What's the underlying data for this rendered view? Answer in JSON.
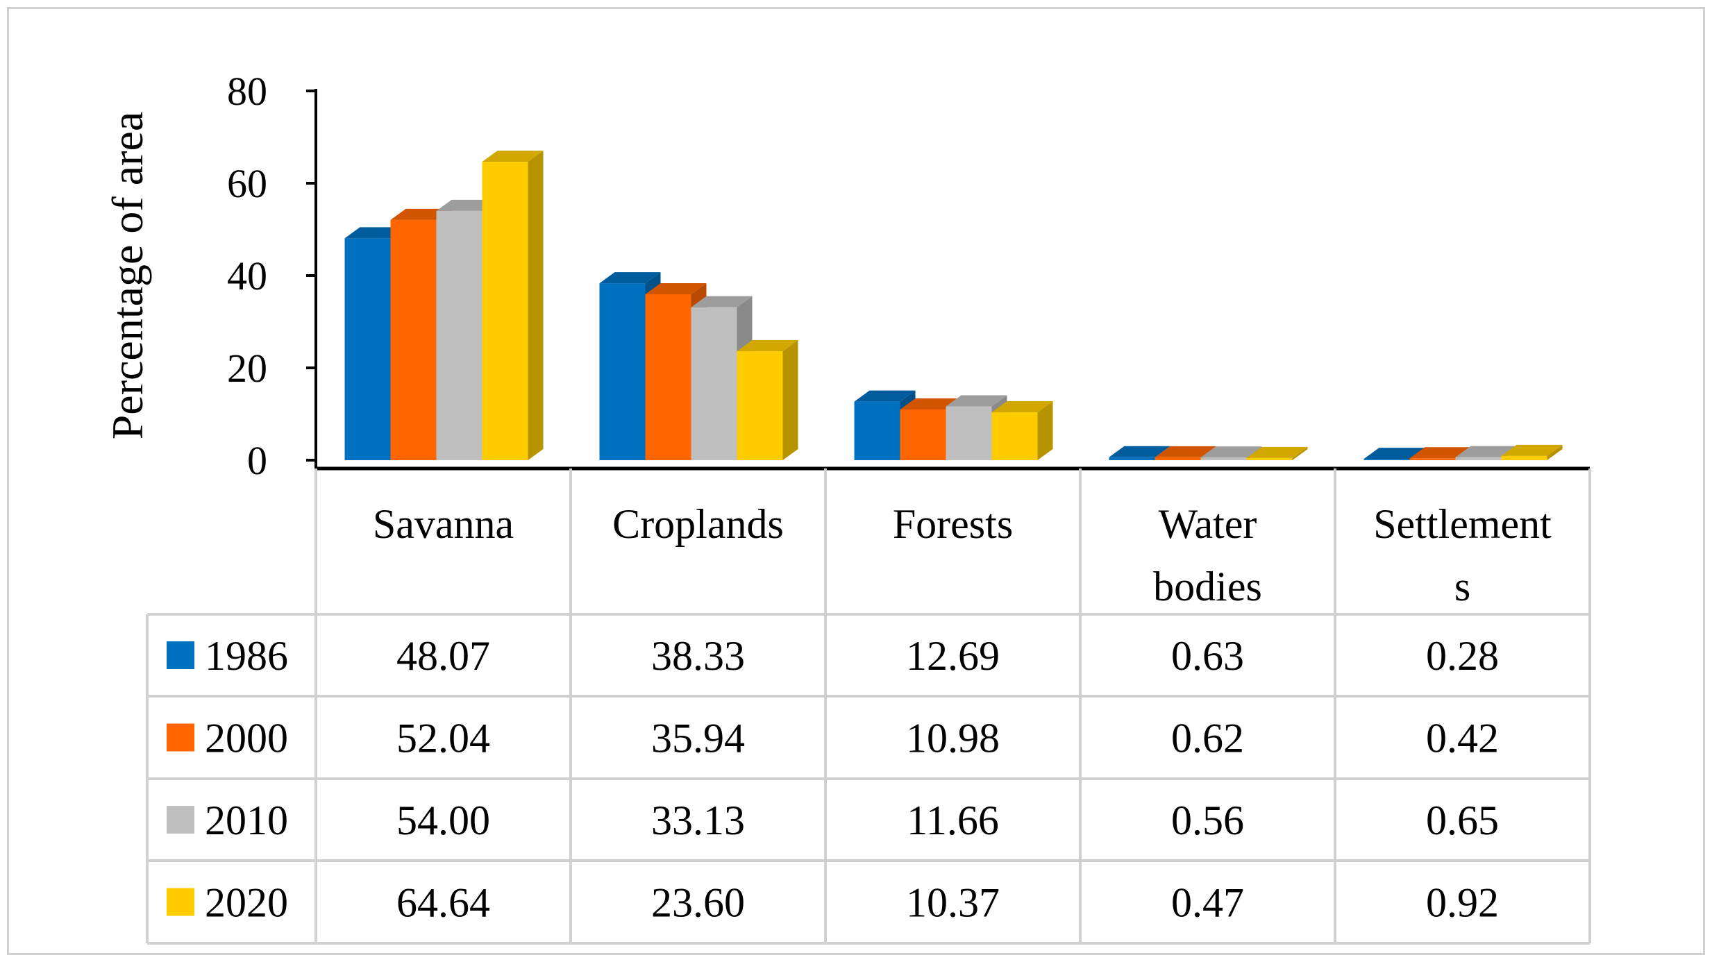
{
  "chart_data": {
    "type": "bar",
    "ylabel": "Percentage of area",
    "ylim": [
      0,
      80
    ],
    "yticks": [
      "0",
      "20",
      "40",
      "60",
      "80"
    ],
    "categories": [
      [
        "Savanna"
      ],
      [
        "Croplands"
      ],
      [
        "Forests"
      ],
      [
        "Water",
        "bodies"
      ],
      [
        "Settlement",
        "s"
      ]
    ],
    "series": [
      {
        "name": "1986",
        "color": "#0070C0",
        "values": [
          48.07,
          38.33,
          12.69,
          0.63,
          0.28
        ],
        "labels": [
          "48.07",
          "38.33",
          "12.69",
          "0.63",
          "0.28"
        ]
      },
      {
        "name": "2000",
        "color": "#FF6600",
        "values": [
          52.04,
          35.94,
          10.98,
          0.62,
          0.42
        ],
        "labels": [
          "52.04",
          "35.94",
          "10.98",
          "0.62",
          "0.42"
        ]
      },
      {
        "name": "2010",
        "color": "#BFBFBF",
        "values": [
          54.0,
          33.13,
          11.66,
          0.56,
          0.65
        ],
        "labels": [
          "54.00",
          "33.13",
          "11.66",
          "0.56",
          "0.65"
        ]
      },
      {
        "name": "2020",
        "color": "#FFCC00",
        "values": [
          64.64,
          23.6,
          10.37,
          0.47,
          0.92
        ],
        "labels": [
          "64.64",
          "23.60",
          "10.37",
          "0.47",
          "0.92"
        ]
      }
    ],
    "grid": false,
    "legend": "data-table"
  }
}
